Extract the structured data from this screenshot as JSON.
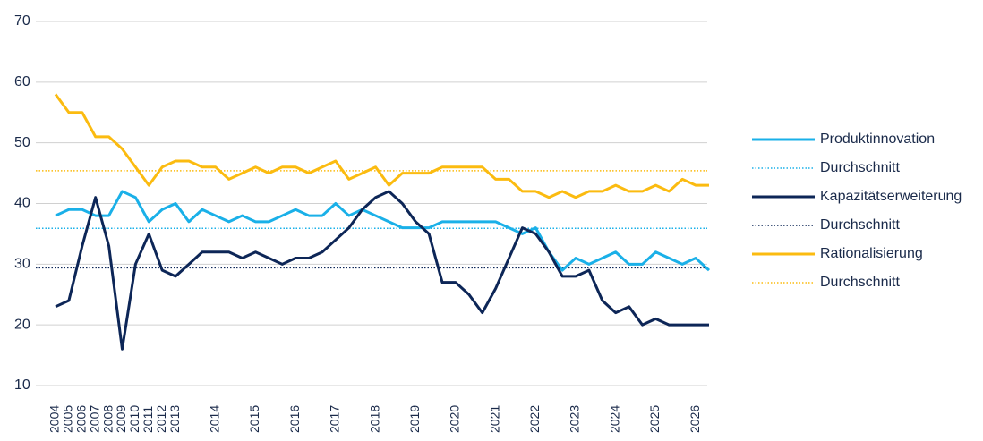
{
  "chart_data": {
    "type": "line",
    "categories": [
      "2004",
      "2005",
      "2006",
      "2007",
      "2008",
      "2009",
      "2010",
      "2011",
      "2012",
      "2013",
      null,
      null,
      "2014",
      null,
      null,
      "2015",
      null,
      null,
      "2016",
      null,
      null,
      "2017",
      null,
      null,
      "2018",
      null,
      null,
      "2019",
      null,
      null,
      "2020",
      null,
      null,
      "2021",
      null,
      null,
      "2022",
      null,
      null,
      "2023",
      null,
      null,
      "2024",
      null,
      null,
      "2025",
      null,
      null,
      "2026",
      null
    ],
    "series": [
      {
        "name": "Produktinnovation",
        "color": "#1ab0e8",
        "values": [
          38,
          39,
          39,
          38,
          38,
          42,
          41,
          37,
          39,
          40,
          37,
          39,
          38,
          37,
          38,
          37,
          37,
          38,
          39,
          38,
          38,
          40,
          38,
          39,
          38,
          37,
          36,
          36,
          36,
          37,
          37,
          37,
          37,
          37,
          36,
          35,
          36,
          32,
          29,
          31,
          30,
          31,
          32,
          30,
          30,
          32,
          31,
          30,
          31,
          29
        ]
      },
      {
        "name": "Kapazitätserweiterung",
        "color": "#0d2657",
        "values": [
          23,
          24,
          33,
          41,
          33,
          16,
          30,
          35,
          29,
          28,
          30,
          32,
          32,
          32,
          31,
          32,
          31,
          30,
          31,
          31,
          32,
          34,
          36,
          39,
          41,
          42,
          40,
          37,
          35,
          27,
          27,
          25,
          22,
          26,
          31,
          36,
          35,
          32,
          28,
          28,
          29,
          24,
          22,
          23,
          20,
          21,
          20,
          20,
          20,
          20
        ]
      },
      {
        "name": "Rationalisierung",
        "color": "#fbbb10",
        "values": [
          58,
          55,
          55,
          51,
          51,
          49,
          46,
          43,
          46,
          47,
          47,
          46,
          46,
          44,
          45,
          46,
          45,
          46,
          46,
          45,
          46,
          47,
          44,
          45,
          46,
          43,
          45,
          45,
          45,
          46,
          46,
          46,
          46,
          44,
          44,
          42,
          42,
          41,
          42,
          41,
          42,
          42,
          43,
          42,
          42,
          43,
          42,
          44,
          43,
          43
        ]
      }
    ],
    "reference_lines": [
      {
        "name": "Durchschnitt",
        "color": "#1ab0e8",
        "value": 35.9
      },
      {
        "name": "Durchschnitt",
        "color": "#0d2657",
        "value": 29.4
      },
      {
        "name": "Durchschnitt",
        "color": "#fbbb10",
        "value": 45.4
      }
    ],
    "ylim": [
      10,
      70
    ],
    "yticks": [
      10,
      20,
      30,
      40,
      50,
      60,
      70
    ],
    "grid": true
  }
}
